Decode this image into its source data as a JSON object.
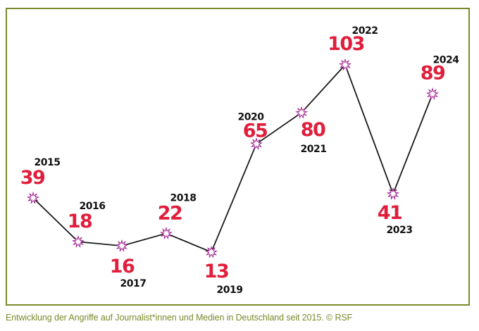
{
  "caption": "Entwicklung der Angriffe auf Journalist*innen und Medien in Deutschland seit 2015.  © RSF",
  "chart_data": {
    "type": "line",
    "x": [
      "2015",
      "2016",
      "2017",
      "2018",
      "2019",
      "2020",
      "2021",
      "2022",
      "2023",
      "2024"
    ],
    "values": [
      39,
      18,
      16,
      22,
      13,
      65,
      80,
      103,
      41,
      89
    ],
    "grid": false,
    "legend": "none",
    "colors": {
      "value": "#e01e3c",
      "year": "#111111",
      "line": "#1a1a1a",
      "marker": "#a0208f",
      "frame": "#7a8a2a"
    }
  }
}
